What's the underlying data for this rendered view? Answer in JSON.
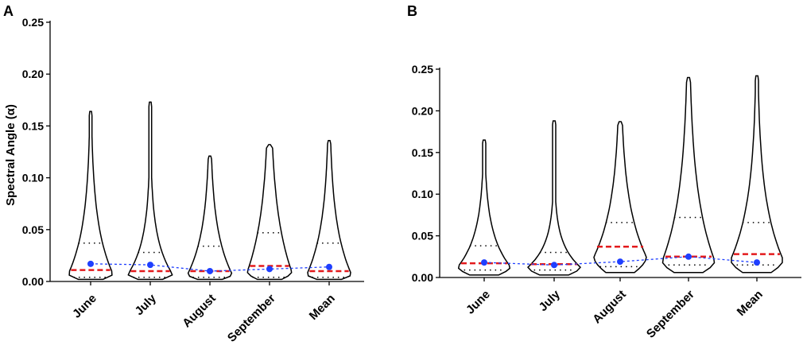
{
  "figure": {
    "colors": {
      "outline": "#000000",
      "median": "#e31a1c",
      "mean": "#1f3fff",
      "quartile": "#000000"
    }
  },
  "chart_data": [
    {
      "panel": "A",
      "type": "violin",
      "categories": [
        "June",
        "July",
        "August",
        "September",
        "Mean"
      ],
      "ylabel": "Spectral Angle (α)",
      "xlabel": "",
      "ylim": [
        0,
        0.25
      ],
      "yticks": [
        "0.00",
        "0.05",
        "0.10",
        "0.15",
        "0.20",
        "0.25"
      ],
      "max": [
        0.164,
        0.173,
        0.121,
        0.132,
        0.136
      ],
      "min": [
        0.002,
        0.002,
        0.002,
        0.002,
        0.002
      ],
      "q1": [
        0.004,
        0.004,
        0.004,
        0.004,
        0.004
      ],
      "median": [
        0.011,
        0.01,
        0.01,
        0.015,
        0.01
      ],
      "q3": [
        0.037,
        0.028,
        0.034,
        0.047,
        0.037
      ],
      "mean": [
        0.017,
        0.016,
        0.01,
        0.012,
        0.014
      ],
      "mean_line": true
    },
    {
      "panel": "B",
      "type": "violin",
      "categories": [
        "June",
        "July",
        "August",
        "September",
        "Mean"
      ],
      "ylabel": "",
      "xlabel": "",
      "ylim": [
        0,
        0.25
      ],
      "yticks": [
        "0.00",
        "0.05",
        "0.10",
        "0.15",
        "0.20",
        "0.25"
      ],
      "max": [
        0.165,
        0.188,
        0.187,
        0.24,
        0.242
      ],
      "min": [
        0.003,
        0.003,
        0.006,
        0.006,
        0.006
      ],
      "q1": [
        0.009,
        0.009,
        0.013,
        0.015,
        0.015
      ],
      "median": [
        0.017,
        0.016,
        0.037,
        0.025,
        0.028
      ],
      "q3": [
        0.038,
        0.03,
        0.066,
        0.072,
        0.066
      ],
      "mean": [
        0.018,
        0.015,
        0.019,
        0.025,
        0.018
      ],
      "mean_line": true
    }
  ]
}
